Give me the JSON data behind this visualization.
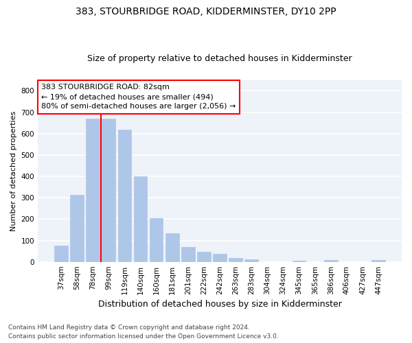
{
  "title1": "383, STOURBRIDGE ROAD, KIDDERMINSTER, DY10 2PP",
  "title2": "Size of property relative to detached houses in Kidderminster",
  "xlabel": "Distribution of detached houses by size in Kidderminster",
  "ylabel": "Number of detached properties",
  "categories": [
    "37sqm",
    "58sqm",
    "78sqm",
    "99sqm",
    "119sqm",
    "140sqm",
    "160sqm",
    "181sqm",
    "201sqm",
    "222sqm",
    "242sqm",
    "263sqm",
    "283sqm",
    "304sqm",
    "324sqm",
    "345sqm",
    "365sqm",
    "386sqm",
    "406sqm",
    "427sqm",
    "447sqm"
  ],
  "values": [
    75,
    315,
    668,
    668,
    617,
    400,
    205,
    133,
    70,
    47,
    37,
    18,
    12,
    0,
    0,
    5,
    0,
    8,
    0,
    0,
    8
  ],
  "bar_color": "#aec6e8",
  "bar_edgecolor": "#aec6e8",
  "vline_color": "red",
  "vline_xindex": 2,
  "annotation_line1": "383 STOURBRIDGE ROAD: 82sqm",
  "annotation_line2": "← 19% of detached houses are smaller (494)",
  "annotation_line3": "80% of semi-detached houses are larger (2,056) →",
  "annotation_box_color": "white",
  "annotation_box_edgecolor": "red",
  "footnote1": "Contains HM Land Registry data © Crown copyright and database right 2024.",
  "footnote2": "Contains public sector information licensed under the Open Government Licence v3.0.",
  "ylim": [
    0,
    850
  ],
  "yticks": [
    0,
    100,
    200,
    300,
    400,
    500,
    600,
    700,
    800
  ],
  "background_color": "#eef2f9",
  "grid_color": "white",
  "title1_fontsize": 10,
  "title2_fontsize": 9,
  "ylabel_fontsize": 8,
  "xlabel_fontsize": 9,
  "tick_fontsize": 7.5,
  "annotation_fontsize": 8,
  "footnote_fontsize": 6.5
}
